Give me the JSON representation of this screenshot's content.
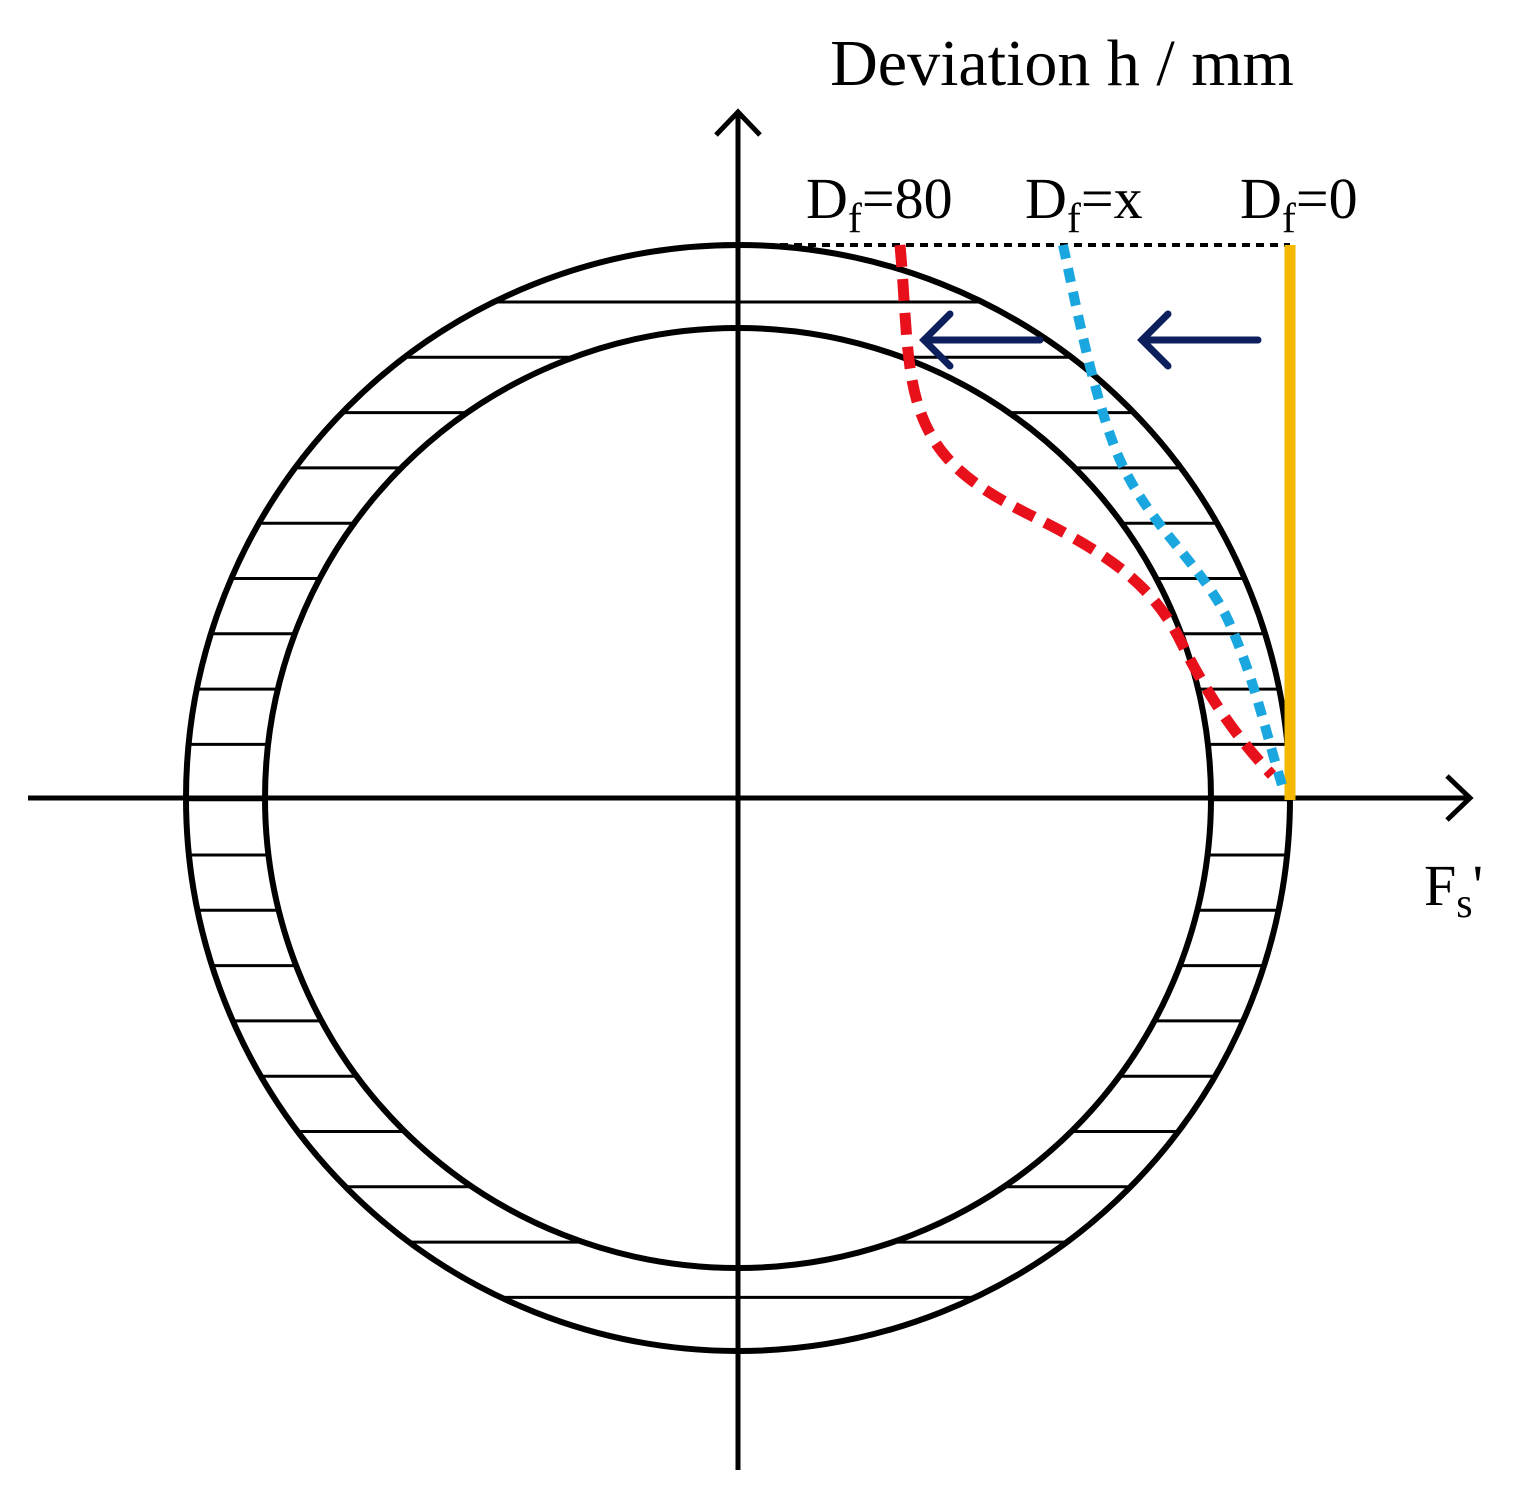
{
  "axes": {
    "y_label": "Deviation h / mm",
    "x_label": {
      "main": "F",
      "sub": "s",
      "rest": "'"
    }
  },
  "curves": [
    {
      "label": {
        "main": "D",
        "sub": "f",
        "rest": "=80"
      }
    },
    {
      "label": {
        "main": "D",
        "sub": "f",
        "rest": "=x"
      }
    },
    {
      "label": {
        "main": "D",
        "sub": "f",
        "rest": "=0"
      }
    }
  ]
}
